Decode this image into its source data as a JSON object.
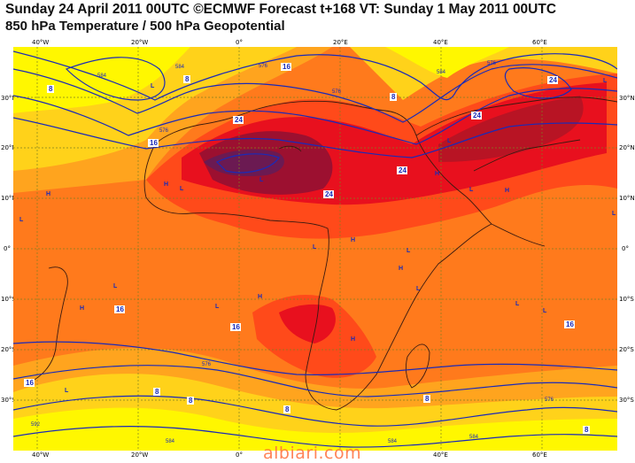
{
  "header": {
    "line1": "Sunday 24 April 2011 00UTC ©ECMWF Forecast t+168 VT: Sunday 1 May 2011 00UTC",
    "line2": "850 hPa Temperature / 500 hPa Geopotential"
  },
  "axes": {
    "lon_ticks": [
      "40°W",
      "20°W",
      "0°",
      "20°E",
      "40°E",
      "60°E"
    ],
    "lat_ticks_left": [
      "30°N",
      "20°N",
      "10°N",
      "0°",
      "10°S",
      "20°S",
      "30°S"
    ],
    "lat_ticks_right": [
      "30°N",
      "20°N",
      "10°N",
      "0°",
      "10°S",
      "20°S",
      "30°S"
    ]
  },
  "colors": {
    "cold": "#fff700",
    "cool": "#ffd21a",
    "mild": "#ffa41e",
    "warm": "#ff7a1c",
    "hot": "#ff4a1a",
    "very_hot": "#e8101e",
    "extreme": "#9c1030",
    "peak": "#6b1a52",
    "geopotential_line": "#1a2ab8",
    "grid": "#808020"
  },
  "temperature_labels": [
    "16",
    "24",
    "24",
    "24",
    "24",
    "24",
    "16",
    "16",
    "16",
    "16",
    "8",
    "8",
    "8",
    "8",
    "8",
    "8",
    "8",
    "8",
    "16"
  ],
  "geopotential_labels": [
    "584",
    "576",
    "576",
    "576",
    "584",
    "576",
    "584",
    "576",
    "584",
    "584",
    "576",
    "592",
    "584"
  ],
  "pressure_centres": [
    "L",
    "H",
    "L",
    "L",
    "H",
    "L",
    "L",
    "H",
    "L",
    "H",
    "H",
    "L",
    "H",
    "L",
    "L",
    "H",
    "L",
    "H",
    "L",
    "H",
    "L",
    "L",
    "L",
    "L",
    "L"
  ],
  "watermark": "albiari.com"
}
